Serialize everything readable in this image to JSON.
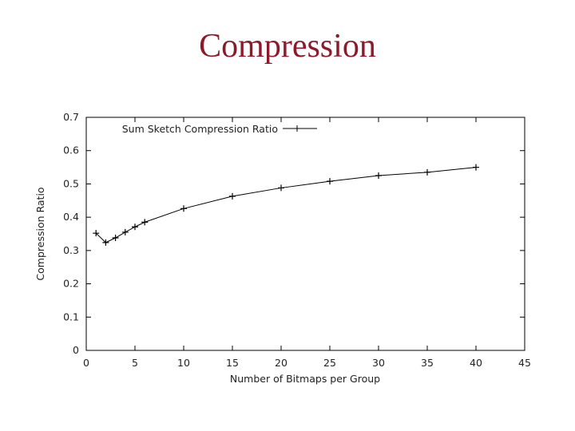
{
  "slide": {
    "title": "Compression",
    "title_color": "#8b1a2b"
  },
  "chart_data": {
    "type": "line",
    "title": "",
    "xlabel": "Number of Bitmaps per Group",
    "ylabel": "Compression Ratio",
    "xlim": [
      0,
      45
    ],
    "ylim": [
      0,
      0.7
    ],
    "xticks": [
      0,
      5,
      10,
      15,
      20,
      25,
      30,
      35,
      40,
      45
    ],
    "yticks": [
      0,
      0.1,
      0.2,
      0.3,
      0.4,
      0.5,
      0.6,
      0.7
    ],
    "ytick_labels": [
      "0",
      "0.1",
      "0.2",
      "0.3",
      "0.4",
      "0.5",
      "0.6",
      "0.7"
    ],
    "grid": false,
    "legend": "top-left",
    "series": [
      {
        "name": "Sum Sketch Compression Ratio",
        "marker": "plus",
        "color": "#000000",
        "x": [
          1,
          2,
          3,
          4,
          5,
          6,
          10,
          15,
          20,
          25,
          30,
          35,
          40
        ],
        "y": [
          0.352,
          0.324,
          0.338,
          0.355,
          0.371,
          0.385,
          0.426,
          0.463,
          0.488,
          0.508,
          0.525,
          0.535,
          0.55
        ]
      }
    ]
  }
}
